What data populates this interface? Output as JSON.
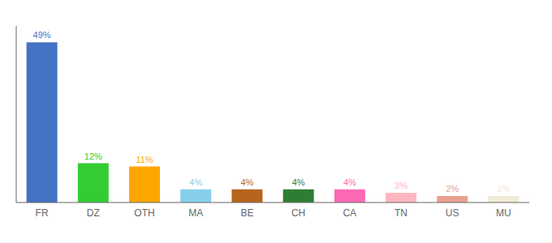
{
  "chart_data": {
    "type": "bar",
    "categories": [
      "FR",
      "DZ",
      "OTH",
      "MA",
      "BE",
      "CH",
      "CA",
      "TN",
      "US",
      "MU"
    ],
    "values": [
      49,
      12,
      11,
      4,
      4,
      4,
      4,
      3,
      2,
      2
    ],
    "value_labels": [
      "49%",
      "12%",
      "11%",
      "4%",
      "4%",
      "4%",
      "4%",
      "3%",
      "2%",
      "2%"
    ],
    "colors": [
      "#4472c4",
      "#33cc33",
      "#ffa500",
      "#87ceeb",
      "#b5651d",
      "#2e7d32",
      "#ff69b4",
      "#ffb6c1",
      "#e8a090",
      "#f0ead6"
    ],
    "ylim": [
      0,
      54
    ],
    "data_labels": true,
    "tick_labels": "x",
    "grid": false
  }
}
